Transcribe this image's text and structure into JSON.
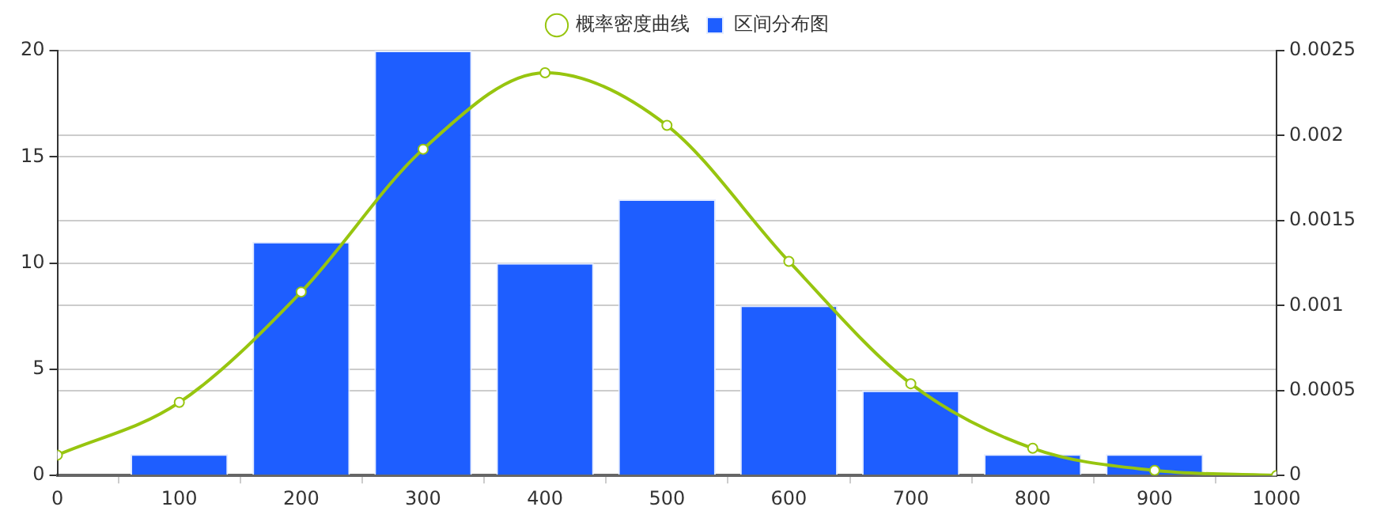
{
  "chart_data": {
    "type": "bar",
    "xlim": [
      0,
      1000
    ],
    "xticks": [
      0,
      100,
      200,
      300,
      400,
      500,
      600,
      700,
      800,
      900,
      1000
    ],
    "ylim": [
      0,
      20
    ],
    "yticks": [
      0,
      5,
      10,
      15,
      20
    ],
    "y2lim": [
      0,
      0.0025
    ],
    "y2ticks": [
      0,
      0.0005,
      0.001,
      0.0015,
      0.002,
      0.0025
    ],
    "grid": "y",
    "legend": "top",
    "series": [
      {
        "name": "概率密度曲线",
        "type": "line",
        "axis": "y2",
        "color": "#97c50f",
        "marker": "circle",
        "x": [
          0,
          100,
          200,
          300,
          400,
          500,
          600,
          700,
          800,
          900,
          1000
        ],
        "values": [
          0.00012,
          0.00043,
          0.00108,
          0.00192,
          0.00237,
          0.00206,
          0.00126,
          0.00054,
          0.00016,
          3e-05,
          0
        ]
      },
      {
        "name": "区间分布图",
        "color": "#1e5eff",
        "x": [
          100,
          200,
          300,
          400,
          500,
          600,
          700,
          800,
          900
        ],
        "values": [
          1,
          11,
          20,
          10,
          13,
          8,
          4,
          1,
          1
        ]
      }
    ]
  }
}
